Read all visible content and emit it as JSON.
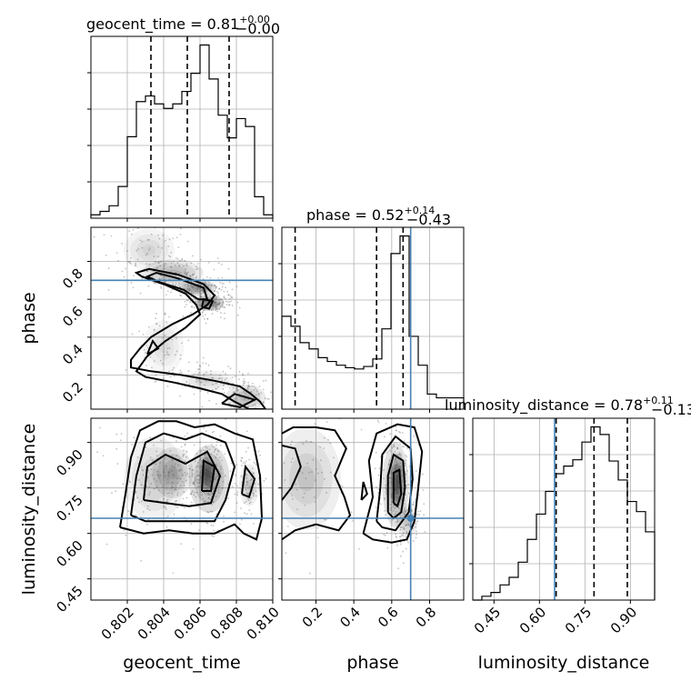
{
  "chart_data": {
    "type": "corner",
    "parameters": [
      "geocent_time",
      "phase",
      "luminosity_distance"
    ],
    "truth_color": "#4682b4",
    "truths": {
      "phase": 0.7,
      "luminosity_distance": 0.65
    },
    "ranges": {
      "geocent_time": [
        0.8,
        0.81
      ],
      "phase": [
        0.02,
        0.98
      ],
      "luminosity_distance": [
        0.38,
        0.98
      ]
    },
    "ticks": {
      "geocent_time": {
        "values": [
          0.802,
          0.804,
          0.806,
          0.808,
          0.81
        ],
        "labels": [
          "0.802",
          "0.804",
          "0.806",
          "0.808",
          "0.810"
        ]
      },
      "phase": {
        "values": [
          0.2,
          0.4,
          0.6,
          0.8
        ],
        "labels": [
          "0.2",
          "0.4",
          "0.6",
          "0.8"
        ]
      },
      "luminosity_distance": {
        "values": [
          0.45,
          0.6,
          0.75,
          0.9
        ],
        "labels": [
          "0.45",
          "0.60",
          "0.75",
          "0.90"
        ]
      }
    },
    "titles": {
      "geocent_time": {
        "text": "geocent_time = 0.81",
        "plus": "+0.00",
        "minus": "−0.00"
      },
      "phase": {
        "text": "phase = 0.52",
        "plus": "+0.14",
        "minus": "−0.43"
      },
      "luminosity_distance": {
        "text": "luminosity_distance = 0.78",
        "plus": "+0.11",
        "minus": "−0.13"
      }
    },
    "quantiles": {
      "geocent_time": [
        0.8033,
        0.8053,
        0.8076
      ],
      "phase": [
        0.09,
        0.52,
        0.66
      ],
      "luminosity_distance": [
        0.655,
        0.78,
        0.89
      ]
    },
    "histograms": {
      "geocent_time": {
        "bin_edges": [
          0.8,
          0.8005,
          0.801,
          0.8015,
          0.802,
          0.8025,
          0.803,
          0.8035,
          0.804,
          0.8045,
          0.805,
          0.8055,
          0.806,
          0.8065,
          0.807,
          0.8075,
          0.808,
          0.8085,
          0.809,
          0.8095,
          0.81
        ],
        "counts": [
          3,
          6,
          11,
          28,
          72,
          103,
          108,
          101,
          97,
          101,
          112,
          128,
          153,
          123,
          91,
          71,
          88,
          81,
          19,
          3
        ]
      },
      "phase": {
        "bin_edges": [
          0.02,
          0.068,
          0.116,
          0.164,
          0.212,
          0.26,
          0.308,
          0.356,
          0.404,
          0.452,
          0.5,
          0.548,
          0.596,
          0.644,
          0.692,
          0.74,
          0.788,
          0.836,
          0.884,
          0.932,
          0.98
        ],
        "counts": [
          74,
          66,
          53,
          48,
          41,
          38,
          35,
          33,
          32,
          34,
          40,
          64,
          124,
          138,
          58,
          35,
          12,
          9,
          9,
          9
        ]
      },
      "luminosity_distance": {
        "bin_edges": [
          0.38,
          0.41,
          0.44,
          0.47,
          0.5,
          0.53,
          0.56,
          0.59,
          0.62,
          0.65,
          0.68,
          0.71,
          0.74,
          0.77,
          0.8,
          0.83,
          0.86,
          0.89,
          0.92,
          0.95,
          0.98
        ],
        "counts": [
          0,
          3,
          6,
          12,
          18,
          30,
          48,
          68,
          86,
          100,
          106,
          111,
          125,
          137,
          131,
          110,
          95,
          78,
          70,
          54
        ]
      }
    },
    "contours": {
      "phase_vs_geocent_time": [
        [
          [
            0.8058,
            0.57
          ],
          [
            0.8052,
            0.63
          ],
          [
            0.804,
            0.68
          ],
          [
            0.8028,
            0.72
          ],
          [
            0.8025,
            0.74
          ],
          [
            0.8032,
            0.76
          ],
          [
            0.8048,
            0.73
          ],
          [
            0.8062,
            0.68
          ],
          [
            0.8068,
            0.62
          ],
          [
            0.8064,
            0.57
          ],
          [
            0.8056,
            0.52
          ],
          [
            0.8045,
            0.47
          ],
          [
            0.8033,
            0.4
          ],
          [
            0.8027,
            0.34
          ],
          [
            0.8022,
            0.28
          ],
          [
            0.8022,
            0.24
          ],
          [
            0.8033,
            0.22
          ],
          [
            0.805,
            0.2
          ],
          [
            0.8068,
            0.17
          ],
          [
            0.8082,
            0.14
          ],
          [
            0.8088,
            0.1
          ],
          [
            0.8093,
            0.06
          ],
          [
            0.8096,
            0.02
          ],
          [
            0.8087,
            0.02
          ],
          [
            0.8079,
            0.06
          ],
          [
            0.8072,
            0.1
          ],
          [
            0.806,
            0.13
          ],
          [
            0.8046,
            0.16
          ],
          [
            0.803,
            0.19
          ],
          [
            0.8025,
            0.22
          ],
          [
            0.8031,
            0.3
          ],
          [
            0.8041,
            0.38
          ],
          [
            0.8052,
            0.45
          ],
          [
            0.806,
            0.52
          ],
          [
            0.8058,
            0.57
          ]
        ],
        [
          [
            0.8059,
            0.6
          ],
          [
            0.8051,
            0.65
          ],
          [
            0.8038,
            0.69
          ],
          [
            0.8031,
            0.72
          ],
          [
            0.8036,
            0.74
          ],
          [
            0.8048,
            0.71
          ],
          [
            0.8062,
            0.66
          ],
          [
            0.8064,
            0.6
          ],
          [
            0.8059,
            0.6
          ]
        ],
        [
          [
            0.8061,
            0.56
          ],
          [
            0.8062,
            0.6
          ],
          [
            0.8067,
            0.59
          ],
          [
            0.8065,
            0.55
          ],
          [
            0.8061,
            0.56
          ]
        ],
        [
          [
            0.8072,
            0.05
          ],
          [
            0.8079,
            0.1
          ],
          [
            0.809,
            0.07
          ],
          [
            0.8082,
            0.03
          ],
          [
            0.8072,
            0.05
          ]
        ],
        [
          [
            0.8031,
            0.31
          ],
          [
            0.8034,
            0.38
          ],
          [
            0.8037,
            0.34
          ],
          [
            0.8031,
            0.31
          ]
        ]
      ],
      "luminosity_distance_vs_geocent_time": [
        [
          [
            0.8016,
            0.62
          ],
          [
            0.8019,
            0.73
          ],
          [
            0.8022,
            0.85
          ],
          [
            0.8027,
            0.94
          ],
          [
            0.8037,
            0.97
          ],
          [
            0.8047,
            0.97
          ],
          [
            0.8057,
            0.95
          ],
          [
            0.8068,
            0.96
          ],
          [
            0.8079,
            0.93
          ],
          [
            0.8089,
            0.91
          ],
          [
            0.8093,
            0.79
          ],
          [
            0.8094,
            0.65
          ],
          [
            0.8091,
            0.58
          ],
          [
            0.8084,
            0.6
          ],
          [
            0.8079,
            0.63
          ],
          [
            0.8068,
            0.6
          ],
          [
            0.8056,
            0.6
          ],
          [
            0.8043,
            0.61
          ],
          [
            0.8029,
            0.6
          ],
          [
            0.8016,
            0.62
          ]
        ],
        [
          [
            0.8022,
            0.66
          ],
          [
            0.8025,
            0.79
          ],
          [
            0.803,
            0.9
          ],
          [
            0.804,
            0.93
          ],
          [
            0.8052,
            0.91
          ],
          [
            0.8061,
            0.93
          ],
          [
            0.8074,
            0.9
          ],
          [
            0.8079,
            0.82
          ],
          [
            0.8074,
            0.71
          ],
          [
            0.8068,
            0.64
          ],
          [
            0.8055,
            0.64
          ],
          [
            0.8042,
            0.64
          ],
          [
            0.803,
            0.64
          ],
          [
            0.8022,
            0.66
          ]
        ],
        [
          [
            0.8029,
            0.71
          ],
          [
            0.8031,
            0.82
          ],
          [
            0.8041,
            0.86
          ],
          [
            0.8052,
            0.83
          ],
          [
            0.8064,
            0.87
          ],
          [
            0.8071,
            0.79
          ],
          [
            0.8066,
            0.7
          ],
          [
            0.8054,
            0.69
          ],
          [
            0.8041,
            0.7
          ],
          [
            0.8029,
            0.71
          ]
        ],
        [
          [
            0.8061,
            0.74
          ],
          [
            0.8062,
            0.84
          ],
          [
            0.8068,
            0.82
          ],
          [
            0.8066,
            0.74
          ],
          [
            0.8061,
            0.74
          ]
        ],
        [
          [
            0.8083,
            0.73
          ],
          [
            0.8085,
            0.82
          ],
          [
            0.809,
            0.78
          ],
          [
            0.8087,
            0.72
          ],
          [
            0.8083,
            0.73
          ]
        ]
      ],
      "luminosity_distance_vs_phase": [
        [
          [
            0.02,
            0.58
          ],
          [
            0.09,
            0.61
          ],
          [
            0.2,
            0.63
          ],
          [
            0.32,
            0.61
          ],
          [
            0.38,
            0.66
          ],
          [
            0.35,
            0.72
          ],
          [
            0.3,
            0.79
          ],
          [
            0.36,
            0.88
          ],
          [
            0.3,
            0.94
          ],
          [
            0.2,
            0.95
          ],
          [
            0.08,
            0.95
          ],
          [
            0.02,
            0.93
          ]
        ],
        [
          [
            0.45,
            0.6
          ],
          [
            0.5,
            0.72
          ],
          [
            0.48,
            0.84
          ],
          [
            0.52,
            0.93
          ],
          [
            0.63,
            0.96
          ],
          [
            0.72,
            0.95
          ],
          [
            0.76,
            0.87
          ],
          [
            0.74,
            0.75
          ],
          [
            0.72,
            0.64
          ],
          [
            0.68,
            0.58
          ],
          [
            0.6,
            0.57
          ],
          [
            0.5,
            0.58
          ],
          [
            0.45,
            0.6
          ]
        ],
        [
          [
            0.52,
            0.64
          ],
          [
            0.54,
            0.75
          ],
          [
            0.55,
            0.86
          ],
          [
            0.62,
            0.92
          ],
          [
            0.7,
            0.88
          ],
          [
            0.71,
            0.78
          ],
          [
            0.69,
            0.67
          ],
          [
            0.62,
            0.61
          ],
          [
            0.55,
            0.62
          ],
          [
            0.52,
            0.64
          ]
        ],
        [
          [
            0.58,
            0.67
          ],
          [
            0.58,
            0.79
          ],
          [
            0.61,
            0.86
          ],
          [
            0.66,
            0.84
          ],
          [
            0.67,
            0.75
          ],
          [
            0.65,
            0.67
          ],
          [
            0.61,
            0.65
          ],
          [
            0.58,
            0.67
          ]
        ],
        [
          [
            0.61,
            0.7
          ],
          [
            0.61,
            0.8
          ],
          [
            0.64,
            0.81
          ],
          [
            0.65,
            0.73
          ],
          [
            0.63,
            0.69
          ],
          [
            0.61,
            0.7
          ]
        ],
        [
          [
            0.02,
            0.71
          ],
          [
            0.07,
            0.75
          ],
          [
            0.12,
            0.82
          ],
          [
            0.09,
            0.88
          ],
          [
            0.02,
            0.89
          ]
        ],
        [
          [
            0.44,
            0.71
          ],
          [
            0.45,
            0.77
          ],
          [
            0.47,
            0.73
          ],
          [
            0.44,
            0.71
          ]
        ]
      ]
    },
    "density_blobs": {
      "phase_vs_geocent_time": [
        [
          0.8045,
          0.74,
          0.0012,
          0.05,
          0.45
        ],
        [
          0.8058,
          0.66,
          0.0008,
          0.03,
          0.7
        ],
        [
          0.8065,
          0.58,
          0.0006,
          0.03,
          0.85
        ],
        [
          0.8032,
          0.86,
          0.001,
          0.08,
          0.25
        ],
        [
          0.804,
          0.35,
          0.0008,
          0.1,
          0.2
        ],
        [
          0.8085,
          0.08,
          0.0008,
          0.05,
          0.45
        ],
        [
          0.8064,
          0.17,
          0.001,
          0.04,
          0.25
        ]
      ],
      "luminosity_distance_vs_geocent_time": [
        [
          0.8035,
          0.78,
          0.0012,
          0.1,
          0.3
        ],
        [
          0.8045,
          0.8,
          0.0008,
          0.06,
          0.5
        ],
        [
          0.8065,
          0.78,
          0.0008,
          0.08,
          0.7
        ],
        [
          0.8064,
          0.8,
          0.0003,
          0.04,
          0.9
        ],
        [
          0.8087,
          0.76,
          0.0004,
          0.05,
          0.35
        ]
      ],
      "luminosity_distance_vs_phase": [
        [
          0.15,
          0.78,
          0.13,
          0.12,
          0.35
        ],
        [
          0.62,
          0.76,
          0.05,
          0.1,
          0.6
        ],
        [
          0.63,
          0.77,
          0.025,
          0.06,
          0.9
        ],
        [
          0.68,
          0.64,
          0.04,
          0.04,
          0.35
        ]
      ]
    }
  }
}
